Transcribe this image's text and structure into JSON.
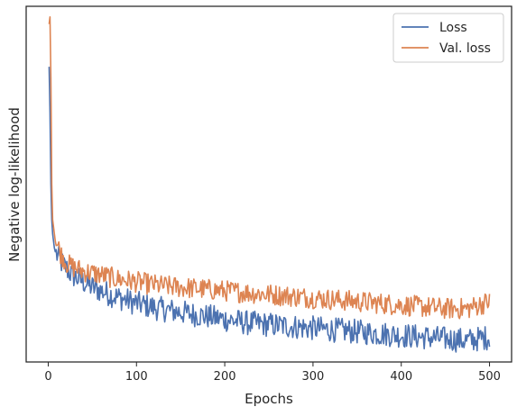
{
  "chart_data": {
    "type": "line",
    "title": "",
    "xlabel": "Epochs",
    "ylabel": "Negative log-likelihood",
    "xlim": [
      -25,
      525
    ],
    "ylim": [
      0,
      1
    ],
    "y_tick_labels_shown": false,
    "x_ticks": [
      0,
      100,
      200,
      300,
      400,
      500
    ],
    "x_tick_labels": [
      "0",
      "100",
      "200",
      "300",
      "400",
      "500"
    ],
    "grid": false,
    "legend_position": "top-right",
    "series": [
      {
        "name": "Loss",
        "color": "#4c72b0",
        "x": [
          1,
          2,
          3,
          4,
          5,
          6,
          7,
          8,
          10,
          12,
          15,
          18,
          20,
          25,
          30,
          40,
          50,
          60,
          75,
          100,
          125,
          150,
          175,
          200,
          225,
          250,
          275,
          300,
          325,
          350,
          375,
          400,
          425,
          450,
          475,
          500
        ],
        "values": [
          0.83,
          0.7,
          0.5,
          0.4,
          0.36,
          0.34,
          0.32,
          0.31,
          0.3,
          0.29,
          0.28,
          0.27,
          0.265,
          0.25,
          0.24,
          0.225,
          0.21,
          0.2,
          0.185,
          0.165,
          0.15,
          0.14,
          0.13,
          0.12,
          0.11,
          0.105,
          0.1,
          0.095,
          0.09,
          0.085,
          0.08,
          0.075,
          0.07,
          0.065,
          0.06,
          0.07
        ]
      },
      {
        "name": "Val. loss",
        "color": "#dd8452",
        "x": [
          1,
          2,
          3,
          4,
          5,
          6,
          7,
          8,
          10,
          12,
          15,
          18,
          20,
          25,
          30,
          40,
          50,
          60,
          75,
          100,
          125,
          150,
          175,
          200,
          225,
          250,
          275,
          300,
          325,
          350,
          375,
          400,
          425,
          450,
          475,
          500
        ],
        "values": [
          0.95,
          0.97,
          0.8,
          0.5,
          0.4,
          0.38,
          0.36,
          0.34,
          0.33,
          0.32,
          0.3,
          0.29,
          0.28,
          0.27,
          0.265,
          0.255,
          0.25,
          0.245,
          0.235,
          0.225,
          0.215,
          0.21,
          0.205,
          0.2,
          0.195,
          0.19,
          0.185,
          0.18,
          0.175,
          0.17,
          0.165,
          0.16,
          0.155,
          0.15,
          0.15,
          0.17
        ]
      }
    ],
    "noise_amplitude": {
      "Loss": 0.035,
      "Val. loss": 0.03
    }
  }
}
